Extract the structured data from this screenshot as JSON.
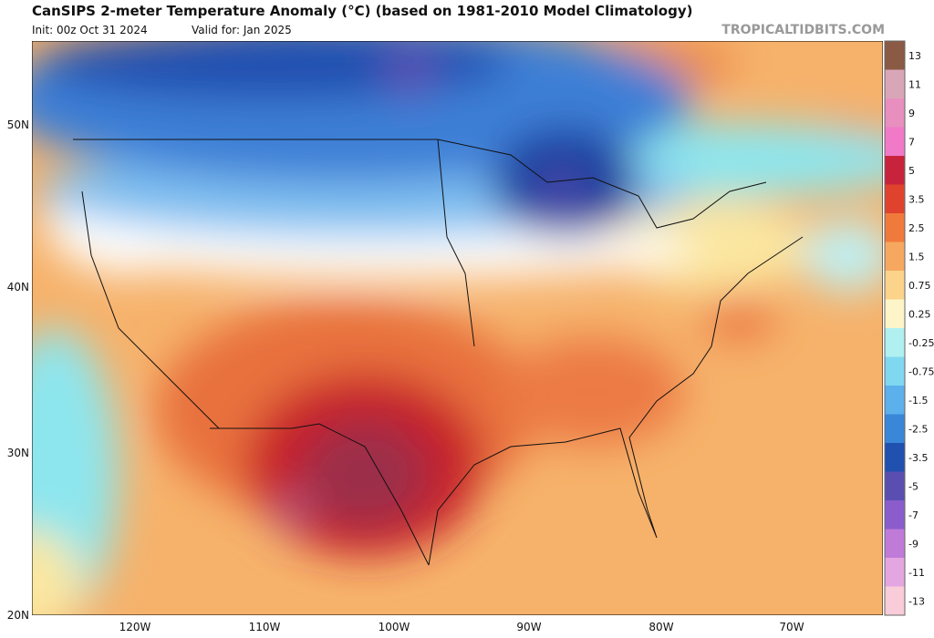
{
  "header": {
    "title": "CanSIPS 2-meter Temperature Anomaly (°C) (based on 1981-2010 Model Climatology)",
    "init": "Init: 00z Oct 31 2024",
    "valid": "Valid for: Jan 2025",
    "site": "TROPICALTIDBITS.COM"
  },
  "map": {
    "lat_labels": [
      "50N",
      "40N",
      "30N",
      "20N"
    ],
    "lon_labels": [
      "120W",
      "110W",
      "100W",
      "90W",
      "80W",
      "70W"
    ]
  },
  "colorbar": {
    "labels": [
      "13",
      "11",
      "9",
      "7",
      "5",
      "3.5",
      "2.5",
      "1.5",
      "0.75",
      "0.25",
      "-0.25",
      "-0.75",
      "-1.5",
      "-2.5",
      "-3.5",
      "-5",
      "-7",
      "-9",
      "-11",
      "-13"
    ],
    "colors": [
      "#8a5a44",
      "#d9a6b8",
      "#e88fbf",
      "#f07ac8",
      "#c8233c",
      "#e0432d",
      "#f07a3c",
      "#f6a860",
      "#fbd38a",
      "#fdf5c8",
      "#b0f0f0",
      "#7fd8f0",
      "#5cb0ec",
      "#3a86d8",
      "#2050b0",
      "#5a4fb0",
      "#8a5ccc",
      "#c07ad8",
      "#e4a6e0",
      "#f8ccd8"
    ]
  }
}
